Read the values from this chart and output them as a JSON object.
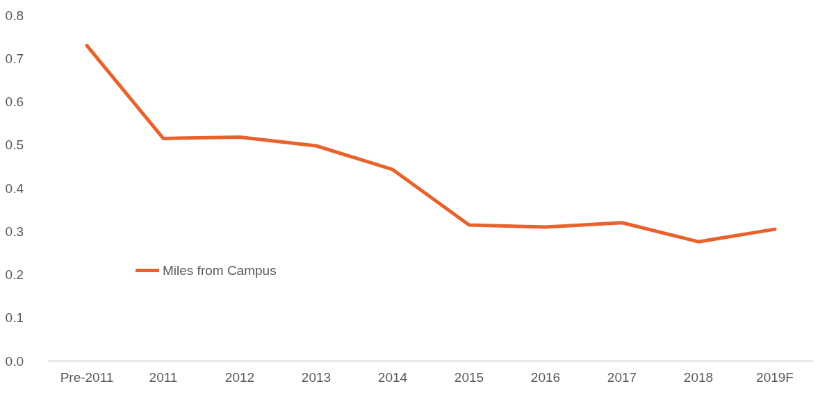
{
  "chart_data": {
    "type": "line",
    "categories": [
      "Pre-2011",
      "2011",
      "2012",
      "2013",
      "2014",
      "2015",
      "2016",
      "2017",
      "2018",
      "2019F"
    ],
    "series": [
      {
        "name": "Miles from Campus",
        "color": "#e8622c",
        "values": [
          0.73,
          0.515,
          0.518,
          0.498,
          0.443,
          0.315,
          0.31,
          0.32,
          0.276,
          0.305
        ]
      }
    ],
    "ylim": [
      0,
      0.8
    ],
    "yticks": [
      {
        "value": 0,
        "label": "0.0"
      },
      0.1,
      0.2,
      0.3,
      0.4,
      0.5,
      0.6,
      0.7,
      0.8
    ],
    "grid": false,
    "legend": "left",
    "marker": "none",
    "line_style": "solid"
  }
}
